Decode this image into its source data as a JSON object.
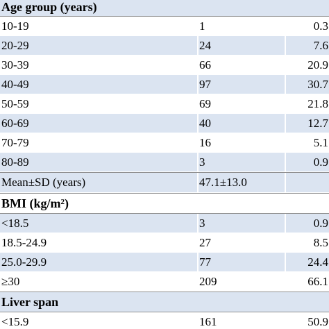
{
  "sections": [
    {
      "title": "Age group (years)",
      "rows": [
        {
          "label": "10-19",
          "n": "1",
          "pct": "0.3"
        },
        {
          "label": "20-29",
          "n": "24",
          "pct": "7.6"
        },
        {
          "label": "30-39",
          "n": "66",
          "pct": "20.9"
        },
        {
          "label": "40-49",
          "n": "97",
          "pct": "30.7"
        },
        {
          "label": "50-59",
          "n": "69",
          "pct": "21.8"
        },
        {
          "label": "60-69",
          "n": "40",
          "pct": "12.7"
        },
        {
          "label": "70-79",
          "n": "16",
          "pct": "5.1"
        },
        {
          "label": "80-89",
          "n": "3",
          "pct": "0.9"
        },
        {
          "label": "Mean±SD (years)",
          "n": "47.1±13.0",
          "pct": ""
        }
      ]
    },
    {
      "title_main": "BMI (kg/m",
      "title_sup": "2",
      "title_end": ")",
      "rows": [
        {
          "label": "<18.5",
          "n": "3",
          "pct": "0.9"
        },
        {
          "label": "18.5-24.9",
          "n": "27",
          "pct": "8.5"
        },
        {
          "label": "25.0-29.9",
          "n": "77",
          "pct": "24.4"
        },
        {
          "label": "≥30",
          "n": "209",
          "pct": "66.1"
        }
      ]
    },
    {
      "title": "Liver span",
      "rows": [
        {
          "label": "<15.9",
          "n": "161",
          "pct": "50.9"
        }
      ]
    }
  ],
  "colors": {
    "shaded_row": "#dbe4f1",
    "plain_row": "#ffffff",
    "rule": "#8f8f8f",
    "text": "#000000"
  }
}
